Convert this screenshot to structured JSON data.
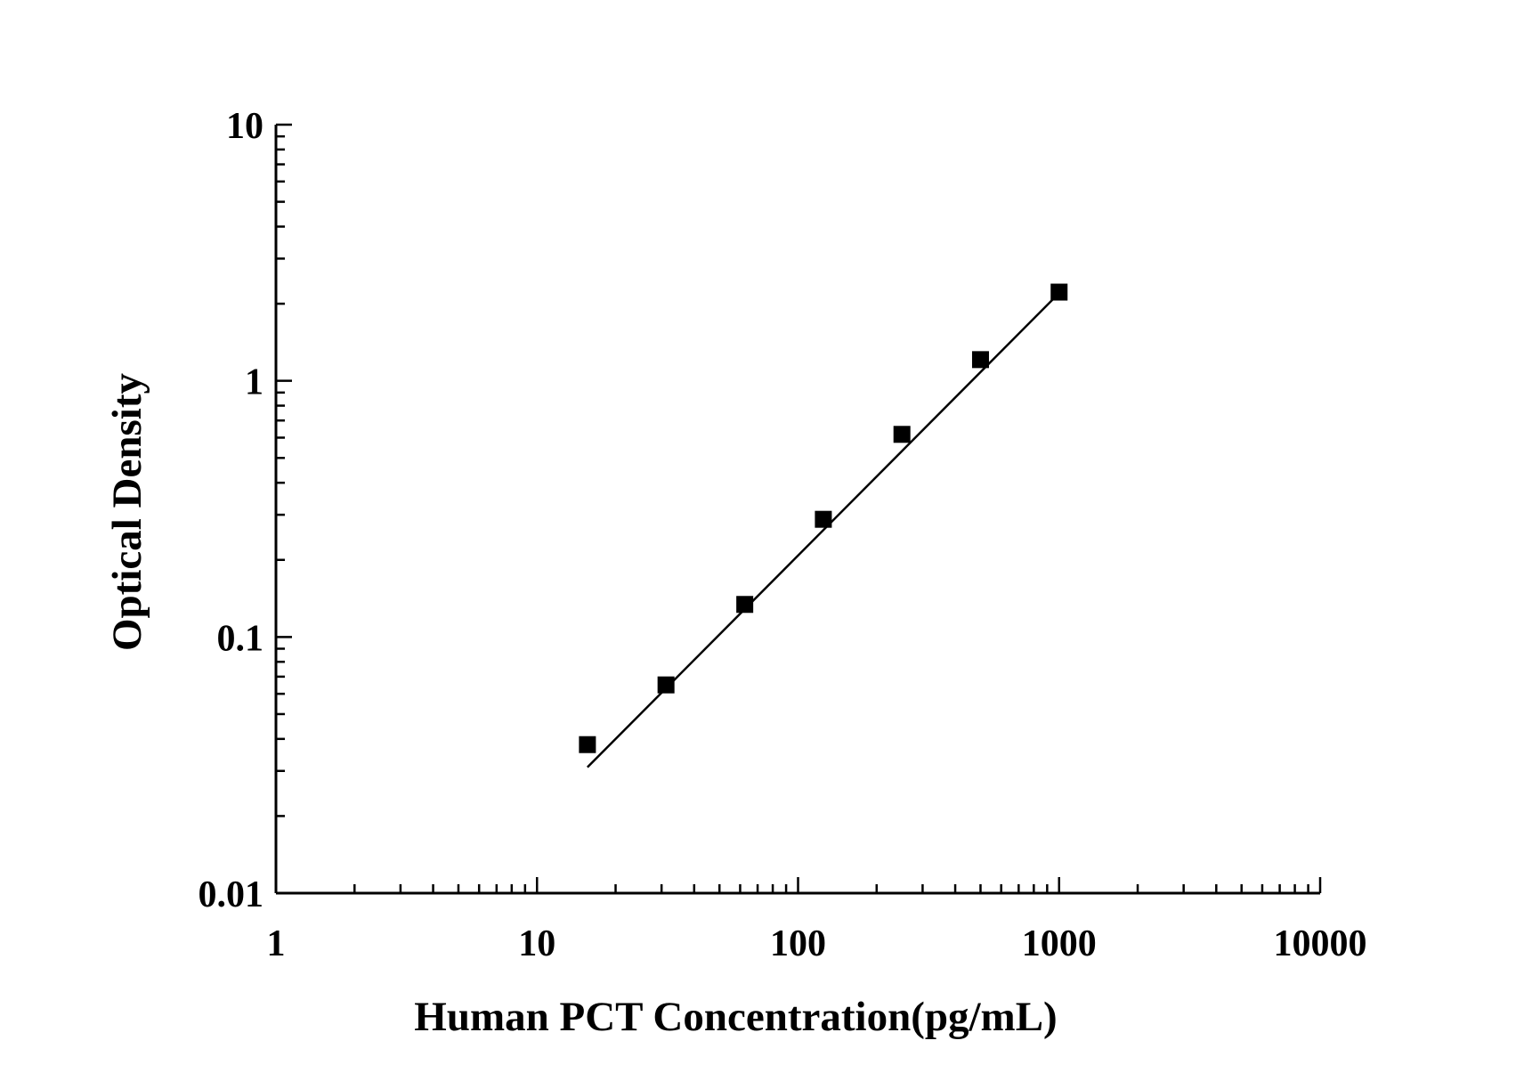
{
  "chart_data": {
    "type": "scatter",
    "title": "",
    "xlabel": "Human PCT Concentration(pg/mL)",
    "ylabel": "Optical Density",
    "x_scale": "log",
    "y_scale": "log",
    "xlim": [
      1,
      10000
    ],
    "ylim": [
      0.01,
      10
    ],
    "x_ticks": [
      "1",
      "10",
      "100",
      "1000",
      "10000"
    ],
    "y_ticks": [
      "0.01",
      "0.1",
      "1",
      "10"
    ],
    "grid": false,
    "legend": "none",
    "marker": "square",
    "color": "#000000",
    "series": [
      {
        "x": [
          15.6,
          31.2,
          62.5,
          125,
          250,
          500,
          1000
        ],
        "y": [
          0.038,
          0.065,
          0.134,
          0.288,
          0.618,
          1.21,
          2.22
        ]
      }
    ],
    "fit_line": {
      "x": [
        15.6,
        1000
      ],
      "y": [
        0.031,
        2.2
      ]
    }
  }
}
